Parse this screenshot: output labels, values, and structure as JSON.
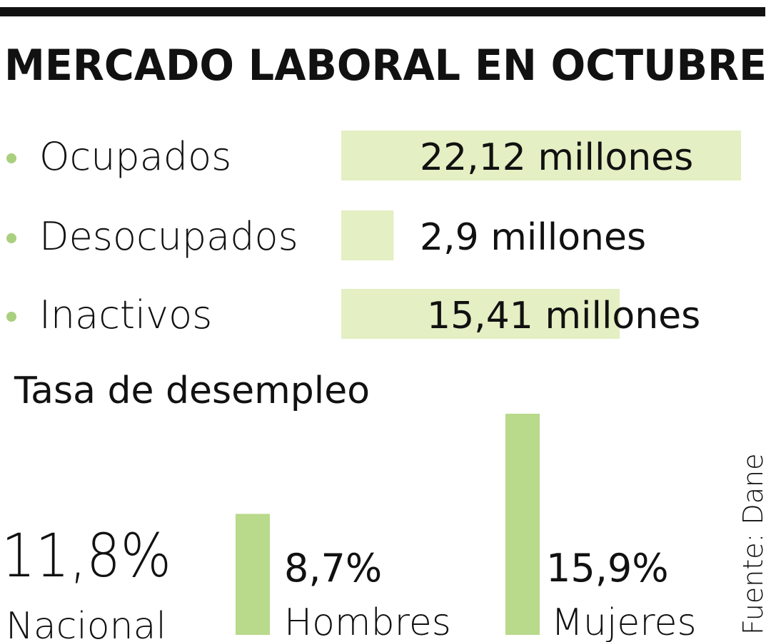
{
  "title": "MERCADO LABORAL EN OCTUBRE",
  "chart_data": [
    {
      "type": "hbar",
      "color": "#e4efc3",
      "bullet_color": "#a9d07e",
      "categories": [
        "Ocupados",
        "Desocupados",
        "Inactivos"
      ],
      "values": [
        22.12,
        2.9,
        15.41
      ],
      "value_labels": [
        "22,12 millones",
        "2,9 millones",
        "15,41 millones"
      ]
    },
    {
      "type": "bar",
      "title": "Tasa de desempleo",
      "color": "#b9d98b",
      "headline": {
        "value": 11.8,
        "value_label": "11,8%",
        "label": "Nacional"
      },
      "categories": [
        "Hombres",
        "Mujeres"
      ],
      "values": [
        8.7,
        15.9
      ],
      "value_labels": [
        "8,7%",
        "15,9%"
      ],
      "source": "Fuente: Dane"
    }
  ]
}
